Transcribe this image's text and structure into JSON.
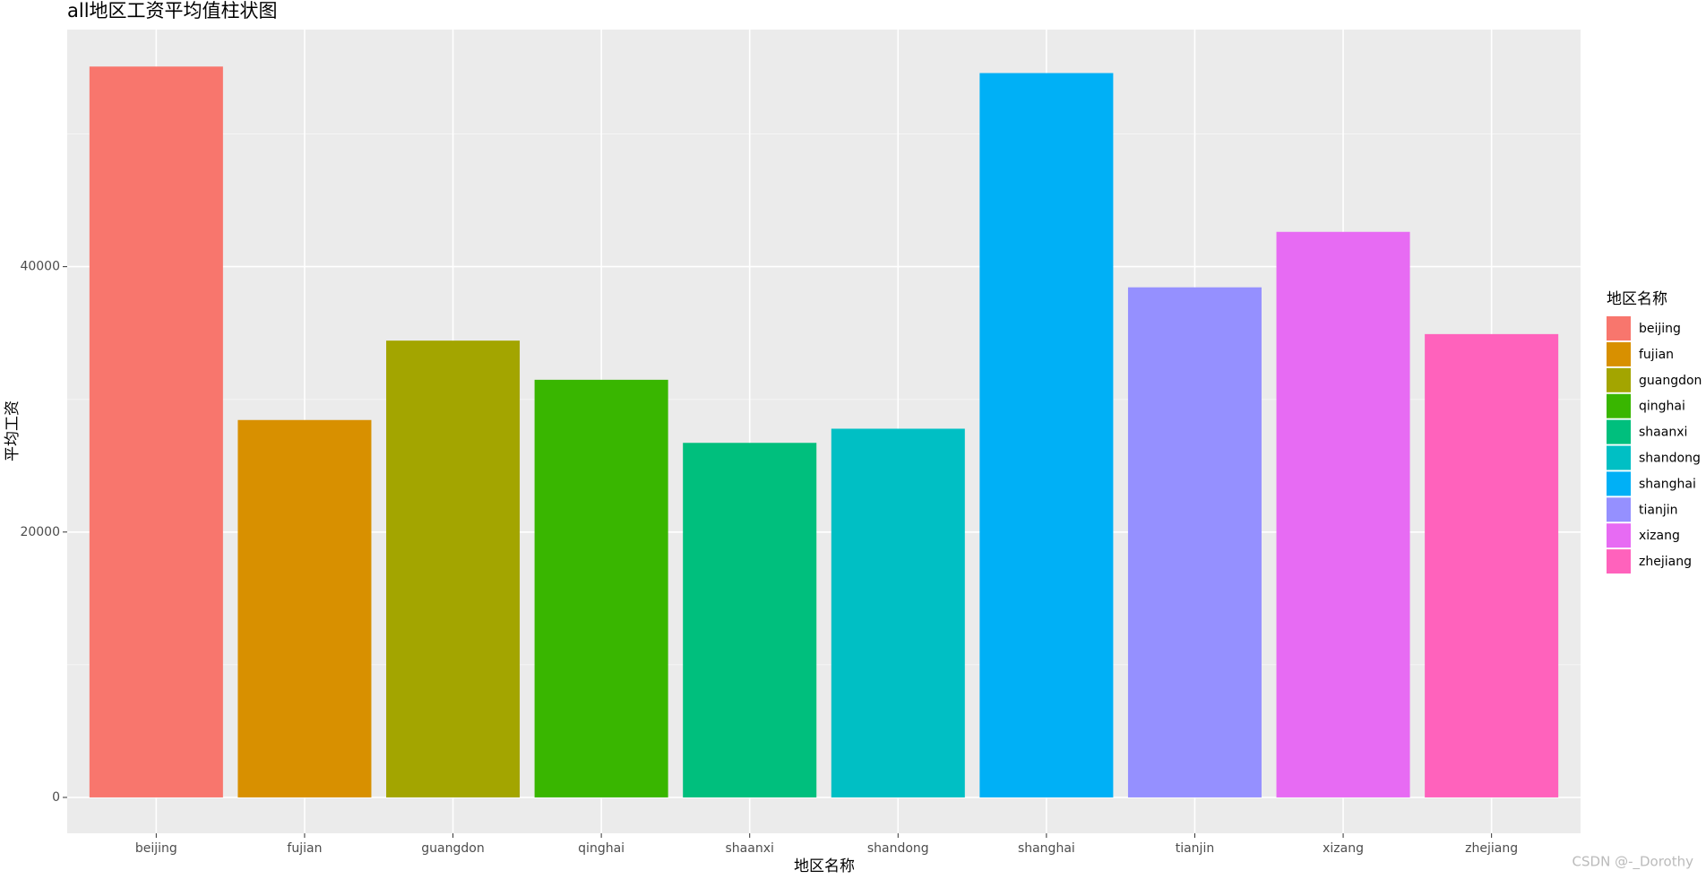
{
  "chart_data": {
    "type": "bar",
    "title": "all地区工资平均值柱状图",
    "x_label": "地区名称",
    "y_label": "平均工资",
    "legend_title": "地区名称",
    "categories": [
      "beijing",
      "fujian",
      "guangdon",
      "qinghai",
      "shaanxi",
      "shandong",
      "shanghai",
      "tianjin",
      "xizang",
      "zhejiang"
    ],
    "series": [
      {
        "name": "平均工资",
        "values": [
          55082,
          28443,
          34426,
          31475,
          26721,
          27787,
          54590,
          38443,
          42623,
          34918
        ]
      }
    ],
    "colors": [
      "#f8766d",
      "#d89000",
      "#a3a500",
      "#39b600",
      "#00bf7d",
      "#00bfc4",
      "#00b0f6",
      "#9590ff",
      "#e76bf3",
      "#ff62bc"
    ],
    "ylim": [
      -2705,
      57869
    ],
    "yticks": [
      0,
      20000,
      40000
    ],
    "grid": true,
    "minor_grid": true,
    "legend_position": "right",
    "watermark": "CSDN @-_Dorothy"
  }
}
